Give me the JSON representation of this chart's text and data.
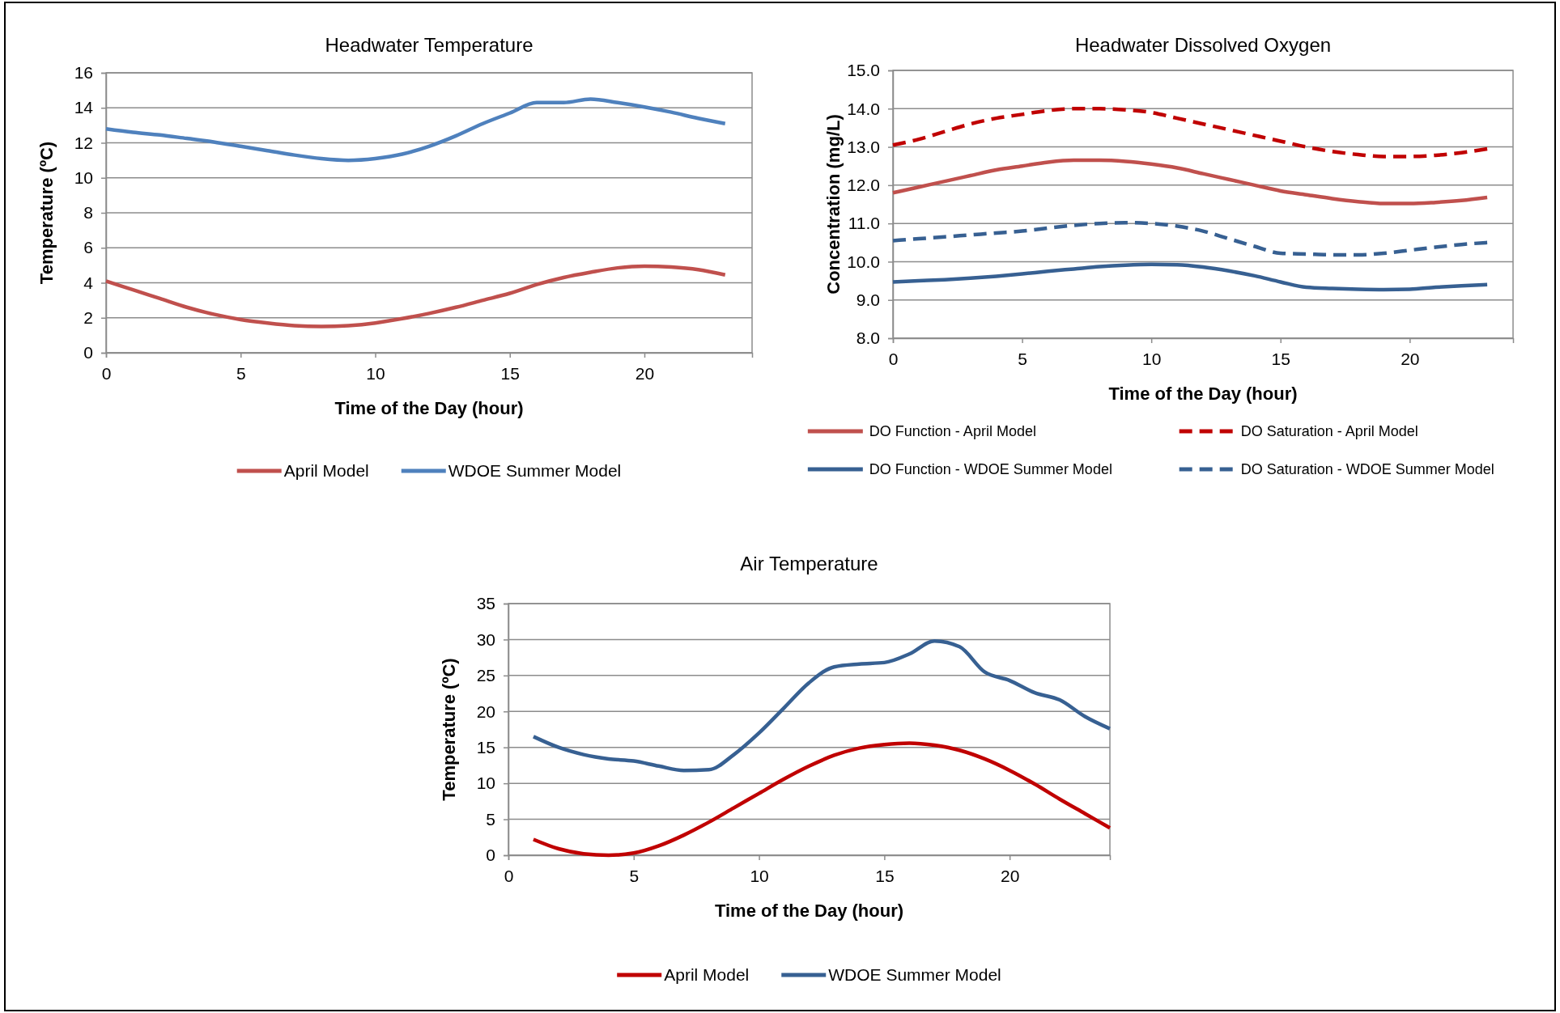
{
  "chart_data": [
    {
      "type": "line",
      "title": "Headwater Temperature",
      "xlabel": "Time of the Day (hour)",
      "ylabel": "Temperature (ºC)",
      "x": [
        0,
        1,
        2,
        3,
        4,
        5,
        6,
        7,
        8,
        9,
        10,
        11,
        12,
        13,
        14,
        15,
        16,
        17,
        18,
        19,
        20,
        21,
        22,
        23
      ],
      "xlim": [
        0,
        24
      ],
      "xticks": [
        0,
        5,
        10,
        15,
        20
      ],
      "ylim": [
        0,
        16
      ],
      "yticks": [
        0,
        2,
        4,
        6,
        8,
        10,
        12,
        14,
        16
      ],
      "grid": "y",
      "legend": "bottom",
      "series": [
        {
          "name": "April Model",
          "color": "#c0504d",
          "line_style": "solid",
          "values": [
            4.1,
            3.6,
            3.1,
            2.6,
            2.2,
            1.9,
            1.7,
            1.55,
            1.5,
            1.55,
            1.7,
            1.95,
            2.25,
            2.6,
            3.0,
            3.4,
            3.9,
            4.3,
            4.6,
            4.85,
            4.95,
            4.9,
            4.75,
            4.45
          ]
        },
        {
          "name": "WDOE Summer Model",
          "color": "#4f81bd",
          "line_style": "solid",
          "values": [
            12.8,
            12.6,
            12.45,
            12.25,
            12.05,
            11.8,
            11.55,
            11.3,
            11.1,
            11.0,
            11.1,
            11.35,
            11.8,
            12.4,
            13.1,
            13.7,
            14.3,
            14.3,
            14.5,
            14.3,
            14.05,
            13.75,
            13.4,
            13.1
          ]
        }
      ]
    },
    {
      "type": "line",
      "title": "Headwater Dissolved Oxygen",
      "xlabel": "Time of the Day (hour)",
      "ylabel": "Concentration (mg/L)",
      "x": [
        0,
        1,
        2,
        3,
        4,
        5,
        6,
        7,
        8,
        9,
        10,
        11,
        12,
        13,
        14,
        15,
        16,
        17,
        18,
        19,
        20,
        21,
        22,
        23
      ],
      "xlim": [
        0,
        24
      ],
      "xticks": [
        0,
        5,
        10,
        15,
        20
      ],
      "ylim": [
        8,
        15
      ],
      "yticks": [
        {
          "value": 8,
          "label": "8.0"
        },
        {
          "value": 9,
          "label": "9.0"
        },
        {
          "value": 10,
          "label": "10.0"
        },
        {
          "value": 11,
          "label": "11.0"
        },
        {
          "value": 12,
          "label": "12.0"
        },
        {
          "value": 13,
          "label": "13.0"
        },
        {
          "value": 14,
          "label": "14.0"
        },
        {
          "value": 15,
          "label": "15.0"
        }
      ],
      "grid": "y",
      "legend": "bottom",
      "series": [
        {
          "name": "DO Function - April Model",
          "color": "#c0504d",
          "line_style": "solid",
          "values": [
            11.8,
            11.95,
            12.1,
            12.25,
            12.4,
            12.5,
            12.6,
            12.65,
            12.65,
            12.62,
            12.55,
            12.45,
            12.3,
            12.15,
            12.0,
            11.85,
            11.75,
            11.65,
            11.57,
            11.52,
            11.52,
            11.55,
            11.6,
            11.68
          ]
        },
        {
          "name": "DO Saturation - April Model",
          "color": "#c00000",
          "line_style": "dashed",
          "values": [
            13.05,
            13.2,
            13.4,
            13.6,
            13.75,
            13.85,
            13.95,
            14.0,
            14.0,
            13.97,
            13.9,
            13.75,
            13.6,
            13.45,
            13.3,
            13.15,
            13.0,
            12.88,
            12.8,
            12.75,
            12.75,
            12.78,
            12.85,
            12.95
          ]
        },
        {
          "name": "DO Function - WDOE Summer Model",
          "color": "#376092",
          "line_style": "solid",
          "values": [
            9.47,
            9.5,
            9.53,
            9.57,
            9.62,
            9.68,
            9.75,
            9.81,
            9.87,
            9.91,
            9.93,
            9.92,
            9.86,
            9.76,
            9.63,
            9.47,
            9.33,
            9.3,
            9.28,
            9.27,
            9.28,
            9.33,
            9.37,
            9.4
          ]
        },
        {
          "name": "DO Saturation - WDOE Summer Model",
          "color": "#376092",
          "line_style": "dashed",
          "values": [
            10.55,
            10.6,
            10.65,
            10.7,
            10.75,
            10.8,
            10.88,
            10.95,
            11.0,
            11.02,
            11.0,
            10.93,
            10.8,
            10.6,
            10.4,
            10.22,
            10.2,
            10.18,
            10.18,
            10.22,
            10.3,
            10.38,
            10.45,
            10.5
          ]
        }
      ]
    },
    {
      "type": "line",
      "title": "Air Temperature",
      "xlabel": "Time of the Day (hour)",
      "ylabel": "Temperature (ºC)",
      "x": [
        1,
        2,
        3,
        4,
        5,
        6,
        7,
        8,
        9,
        10,
        11,
        12,
        13,
        14,
        15,
        16,
        17,
        18,
        19,
        20,
        21,
        22,
        23,
        24
      ],
      "xlim": [
        0,
        24
      ],
      "xticks": [
        0,
        5,
        10,
        15,
        20
      ],
      "ylim": [
        0,
        35
      ],
      "yticks": [
        0,
        5,
        10,
        15,
        20,
        25,
        30,
        35
      ],
      "grid": "y",
      "legend": "bottom",
      "series": [
        {
          "name": "April Model",
          "color": "#c00000",
          "line_style": "solid",
          "values": [
            2.2,
            0.9,
            0.2,
            0.0,
            0.3,
            1.3,
            2.8,
            4.6,
            6.6,
            8.6,
            10.6,
            12.4,
            13.9,
            14.9,
            15.4,
            15.6,
            15.3,
            14.6,
            13.4,
            11.8,
            9.9,
            7.8,
            5.8,
            3.8
          ]
        },
        {
          "name": "WDOE Summer Model",
          "color": "#376092",
          "line_style": "solid",
          "values": [
            16.5,
            15.0,
            14.0,
            13.4,
            13.1,
            12.4,
            11.8,
            11.9,
            14.0,
            17.0,
            20.5,
            24.0,
            26.2,
            26.6,
            26.8,
            28.0,
            29.8,
            29.0,
            25.5,
            24.3,
            22.6,
            21.6,
            19.3,
            17.6
          ]
        }
      ]
    }
  ]
}
